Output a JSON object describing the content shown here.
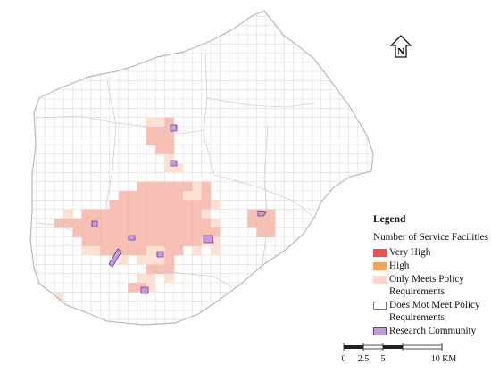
{
  "map": {
    "north_label": "N",
    "background_color": "#ffffff",
    "grid_color": "#dcdcdc",
    "boundary_color": "#b9b9b9",
    "categories": {
      "very_high": {
        "color": "#f05050"
      },
      "high": {
        "color": "#f6a05a"
      },
      "only_meets": {
        "color": "#f5b5a8",
        "color_light": "#fce1d2"
      },
      "does_not_meet": {
        "color": "#ffffff",
        "stroke": "#888888"
      },
      "research": {
        "color": "#c39bd9",
        "stroke": "#6a3a9a"
      }
    }
  },
  "legend": {
    "title": "Legend",
    "subtitle": "Number of Service Facilities",
    "items": [
      {
        "label": "Very High",
        "label2": "",
        "color": "#f05050",
        "stroke": "#f05050"
      },
      {
        "label": "High",
        "label2": "",
        "color": "#f6a05a",
        "stroke": "#f6a05a"
      },
      {
        "label": "Only Meets Policy",
        "label2": "Requirements",
        "color": "#fbd7c4",
        "stroke": "#fbd7c4"
      },
      {
        "label": "Does Mot Meet Policy",
        "label2": "Requirements",
        "color": "#ffffff",
        "stroke": "#777777"
      },
      {
        "label": "Research Community",
        "label2": "",
        "color": "#c39bd9",
        "stroke": "#6a3a9a"
      }
    ]
  },
  "scalebar": {
    "ticks": [
      "0",
      "2.5",
      "5",
      "10 KM"
    ]
  }
}
